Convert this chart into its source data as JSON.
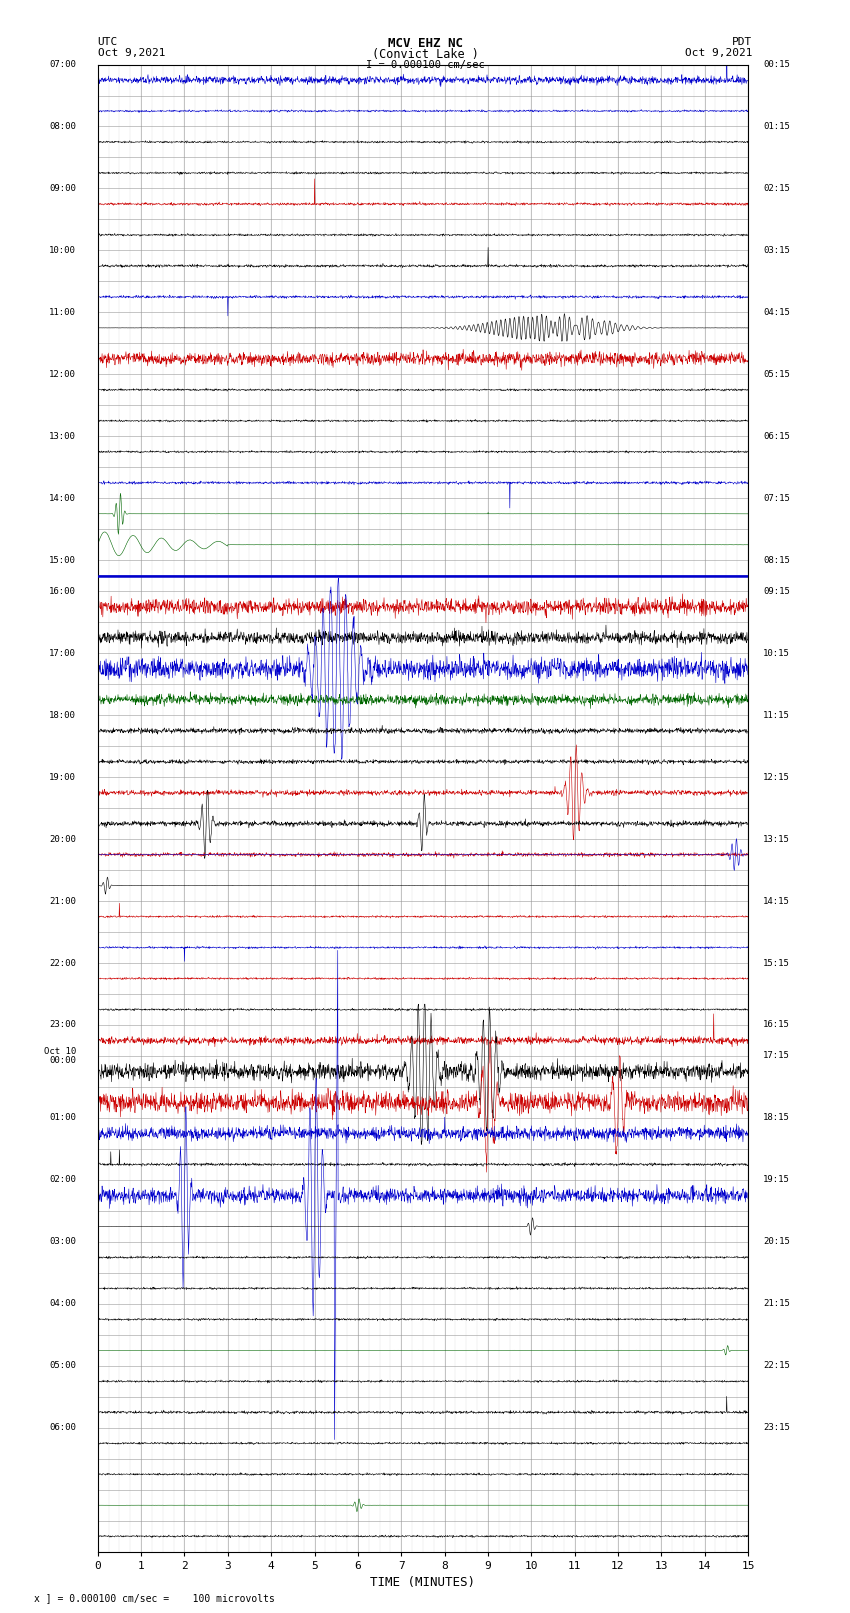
{
  "title_line1": "MCV EHZ NC",
  "title_line2": "(Convict Lake )",
  "title_line3": "I = 0.000100 cm/sec",
  "left_header1": "UTC",
  "left_header2": "Oct 9,2021",
  "right_header1": "PDT",
  "right_header2": "Oct 9,2021",
  "xlabel": "TIME (MINUTES)",
  "footer": "x ] = 0.000100 cm/sec =    100 microvolts",
  "xlim": [
    0,
    15
  ],
  "xticks": [
    0,
    1,
    2,
    3,
    4,
    5,
    6,
    7,
    8,
    9,
    10,
    11,
    12,
    13,
    14,
    15
  ],
  "bg_color": "#ffffff",
  "grid_color": "#999999",
  "trace_colors": {
    "black": "#000000",
    "red": "#cc0000",
    "blue": "#0000cc",
    "green": "#006600"
  },
  "utc_labels": [
    "07:00",
    "",
    "08:00",
    "",
    "09:00",
    "",
    "10:00",
    "",
    "11:00",
    "",
    "12:00",
    "",
    "13:00",
    "",
    "14:00",
    "",
    "15:00",
    "16:00",
    "",
    "17:00",
    "",
    "18:00",
    "",
    "19:00",
    "",
    "20:00",
    "",
    "21:00",
    "",
    "22:00",
    "",
    "23:00",
    "Oct 10\n00:00",
    "",
    "01:00",
    "",
    "02:00",
    "",
    "03:00",
    "",
    "04:00",
    "",
    "05:00",
    "",
    "06:00",
    "",
    ""
  ],
  "pdt_labels": [
    "00:15",
    "",
    "01:15",
    "",
    "02:15",
    "",
    "03:15",
    "",
    "04:15",
    "",
    "05:15",
    "",
    "06:15",
    "",
    "07:15",
    "",
    "08:15",
    "09:15",
    "",
    "10:15",
    "",
    "11:15",
    "",
    "12:15",
    "",
    "13:15",
    "",
    "14:15",
    "",
    "15:15",
    "",
    "16:15",
    "17:15",
    "",
    "18:15",
    "",
    "19:15",
    "",
    "20:15",
    "",
    "21:15",
    "",
    "22:15",
    "",
    "23:15",
    "",
    ""
  ]
}
